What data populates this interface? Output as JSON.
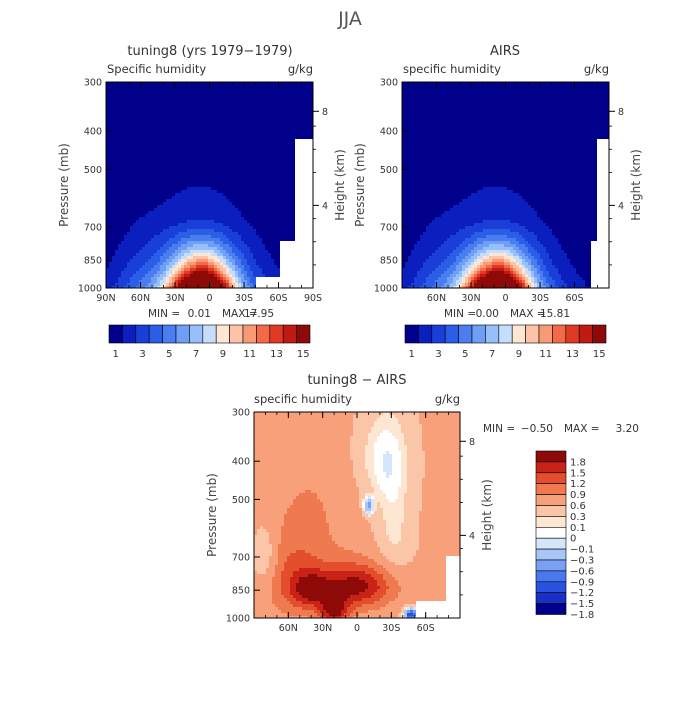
{
  "figure": {
    "title": "JJA"
  },
  "chart_data": [
    {
      "type": "heatmap",
      "title": "tuning8 (yrs 1979−1979)",
      "variable": "Specific humidity",
      "units": "g/kg",
      "xlabel": "",
      "ylabel": "Pressure (mb)",
      "ylabel_right": "Height (km)",
      "x_ticks": [
        "90N",
        "60N",
        "30N",
        "0",
        "30S",
        "60S",
        "90S"
      ],
      "y_ticks": [
        "300",
        "400",
        "500",
        "700",
        "850",
        "1000"
      ],
      "y_right_ticks": [
        "8",
        "4"
      ],
      "stats": {
        "min_label": "MIN =",
        "min": "0.01",
        "max_label": "MAX =",
        "max": "17.95"
      },
      "levels": [
        1,
        2,
        3,
        4,
        5,
        6,
        7,
        8,
        9,
        10,
        11,
        12,
        13,
        14,
        15
      ],
      "colorbar_labels": [
        "1",
        "3",
        "5",
        "7",
        "9",
        "11",
        "13",
        "15"
      ],
      "colors": [
        "#00008b",
        "#0a1fbe",
        "#1a3ed8",
        "#2b5ee6",
        "#4a7ef0",
        "#6f9ef6",
        "#97bff9",
        "#c6ddfb",
        "#fde6d2",
        "#fcc3a6",
        "#f99a76",
        "#f26a48",
        "#e03a24",
        "#c01a12",
        "#8e0a08"
      ]
    },
    {
      "type": "heatmap",
      "title": "AIRS",
      "variable": "specific humidity",
      "units": "g/kg",
      "xlabel": "",
      "ylabel": "Pressure (mb)",
      "ylabel_right": "Height (km)",
      "x_ticks": [
        "60N",
        "30N",
        "0",
        "30S",
        "60S"
      ],
      "y_ticks": [
        "300",
        "400",
        "500",
        "700",
        "850",
        "1000"
      ],
      "y_right_ticks": [
        "8",
        "4"
      ],
      "stats": {
        "min_label": "MIN =",
        "min": "0.00",
        "max_label": "MAX =",
        "max": "15.81"
      },
      "levels": [
        1,
        2,
        3,
        4,
        5,
        6,
        7,
        8,
        9,
        10,
        11,
        12,
        13,
        14,
        15
      ],
      "colorbar_labels": [
        "1",
        "3",
        "5",
        "7",
        "9",
        "11",
        "13",
        "15"
      ],
      "colors": [
        "#00008b",
        "#0a1fbe",
        "#1a3ed8",
        "#2b5ee6",
        "#4a7ef0",
        "#6f9ef6",
        "#97bff9",
        "#c6ddfb",
        "#fde6d2",
        "#fcc3a6",
        "#f99a76",
        "#f26a48",
        "#e03a24",
        "#c01a12",
        "#8e0a08"
      ]
    },
    {
      "type": "heatmap",
      "title": "tuning8 − AIRS",
      "variable": "specific humidity",
      "units": "g/kg",
      "xlabel": "",
      "ylabel": "Pressure (mb)",
      "ylabel_right": "Height (km)",
      "x_ticks": [
        "60N",
        "30N",
        "0",
        "30S",
        "60S"
      ],
      "y_ticks": [
        "300",
        "400",
        "500",
        "700",
        "850",
        "1000"
      ],
      "y_right_ticks": [
        "8",
        "4"
      ],
      "stats": {
        "min_label": "MIN =",
        "min": "−0.50",
        "max_label": "MAX =",
        "max": "3.20"
      },
      "levels": [
        -1.8,
        -1.5,
        -1.2,
        -0.9,
        -0.6,
        -0.3,
        -0.1,
        0,
        0.1,
        0.3,
        0.6,
        0.9,
        1.2,
        1.5,
        1.8
      ],
      "colorbar_labels": [
        "1.8",
        "1.5",
        "1.2",
        "0.9",
        "0.6",
        "0.3",
        "0.1",
        "0",
        "−0.1",
        "−0.3",
        "−0.6",
        "−0.9",
        "−1.2",
        "−1.5",
        "−1.8"
      ],
      "colors": [
        "#00008b",
        "#1a2fc8",
        "#2a52e0",
        "#4a78ee",
        "#7aa0f4",
        "#a8c6f8",
        "#d4e6fb",
        "#ffffff",
        "#fde6d2",
        "#fbc6a8",
        "#f8a07a",
        "#f07a50",
        "#e34e2c",
        "#c82316",
        "#8e0a08"
      ]
    }
  ]
}
